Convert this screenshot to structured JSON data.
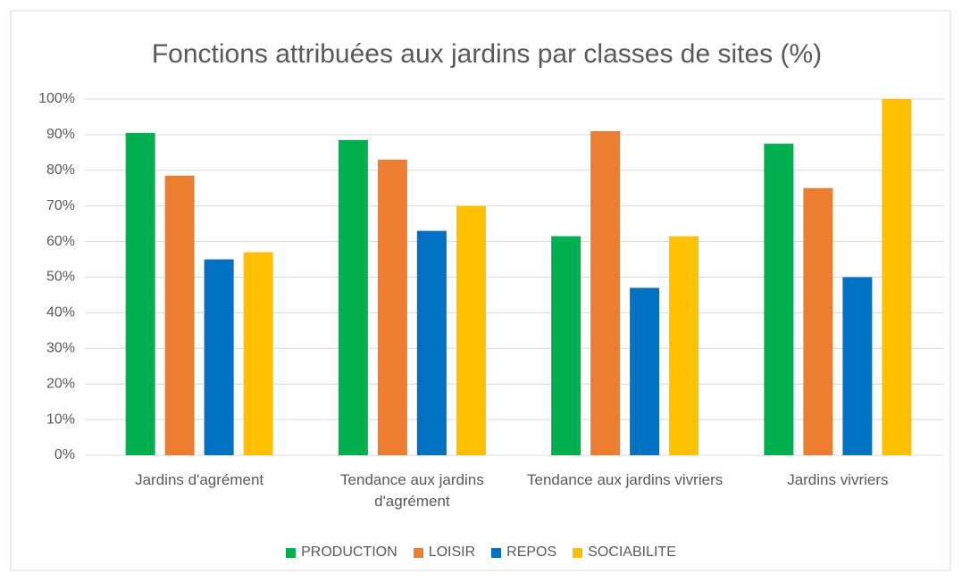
{
  "chart_data": {
    "type": "bar",
    "title": "Fonctions attribuées aux jardins par classes de sites (%)",
    "categories": [
      "Jardins d'agrément",
      "Tendance aux jardins d'agrément",
      "Tendance aux jardins vivriers",
      "Jardins vivriers"
    ],
    "series": [
      {
        "name": "PRODUCTION",
        "color": "#00b050",
        "values": [
          90.5,
          88.5,
          61.5,
          87.5
        ]
      },
      {
        "name": "LOISIR",
        "color": "#ed7d31",
        "values": [
          78.5,
          83,
          91,
          75
        ]
      },
      {
        "name": "REPOS",
        "color": "#0070c0",
        "values": [
          55,
          63,
          47,
          50
        ]
      },
      {
        "name": "SOCIABILITE",
        "color": "#ffc000",
        "values": [
          57,
          70,
          61.5,
          100
        ]
      }
    ],
    "ylim": [
      0,
      100
    ],
    "yticks": [
      {
        "value": 0,
        "label": "0%"
      },
      {
        "value": 10,
        "label": "10%"
      },
      {
        "value": 20,
        "label": "20%"
      },
      {
        "value": 30,
        "label": "30%"
      },
      {
        "value": 40,
        "label": "40%"
      },
      {
        "value": 50,
        "label": "50%"
      },
      {
        "value": 60,
        "label": "60%"
      },
      {
        "value": 70,
        "label": "70%"
      },
      {
        "value": 80,
        "label": "80%"
      },
      {
        "value": 90,
        "label": "90%"
      },
      {
        "value": 100,
        "label": "100%"
      }
    ],
    "grid": true,
    "legend": "bottom"
  }
}
